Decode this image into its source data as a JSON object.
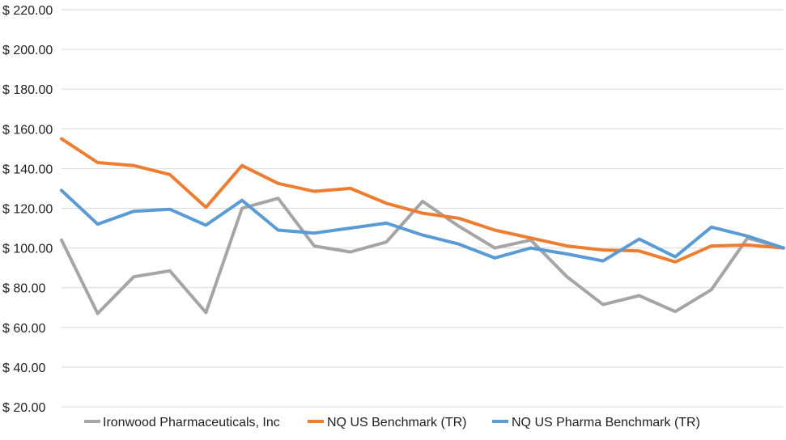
{
  "chart_data": {
    "type": "line",
    "y_ticks": [
      "$ 20.00",
      "$ 40.00",
      "$ 60.00",
      "$ 80.00",
      "$ 100.00",
      "$ 120.00",
      "$ 140.00",
      "$ 160.00",
      "$ 180.00",
      "$ 200.00",
      "$ 220.00"
    ],
    "ylim": [
      20,
      220
    ],
    "grid": true,
    "legend_position": "bottom",
    "series": [
      {
        "name": "Ironwood Pharmaceuticals, Inc",
        "color": "#a5a5a5",
        "values": [
          104,
          67,
          85.5,
          88.5,
          67.5,
          120,
          125,
          101,
          98,
          103,
          123.5,
          111,
          100,
          104,
          85.5,
          71.5,
          76,
          68,
          79,
          105,
          100
        ]
      },
      {
        "name": "NQ US Benchmark (TR)",
        "color": "#ed7d31",
        "values": [
          155,
          143,
          141.5,
          137,
          120.5,
          141.5,
          132.5,
          128.5,
          130,
          122.5,
          117.5,
          115,
          109,
          105,
          101,
          99,
          98.5,
          93,
          101,
          101.5,
          100
        ]
      },
      {
        "name": "NQ US Pharma Benchmark (TR)",
        "color": "#5b9bd5",
        "values": [
          129,
          112,
          118.5,
          119.5,
          111.5,
          124,
          109,
          107.5,
          110,
          112.5,
          106.5,
          102,
          95,
          100,
          97,
          93.5,
          104.5,
          95.5,
          110.5,
          106,
          100
        ]
      }
    ]
  }
}
